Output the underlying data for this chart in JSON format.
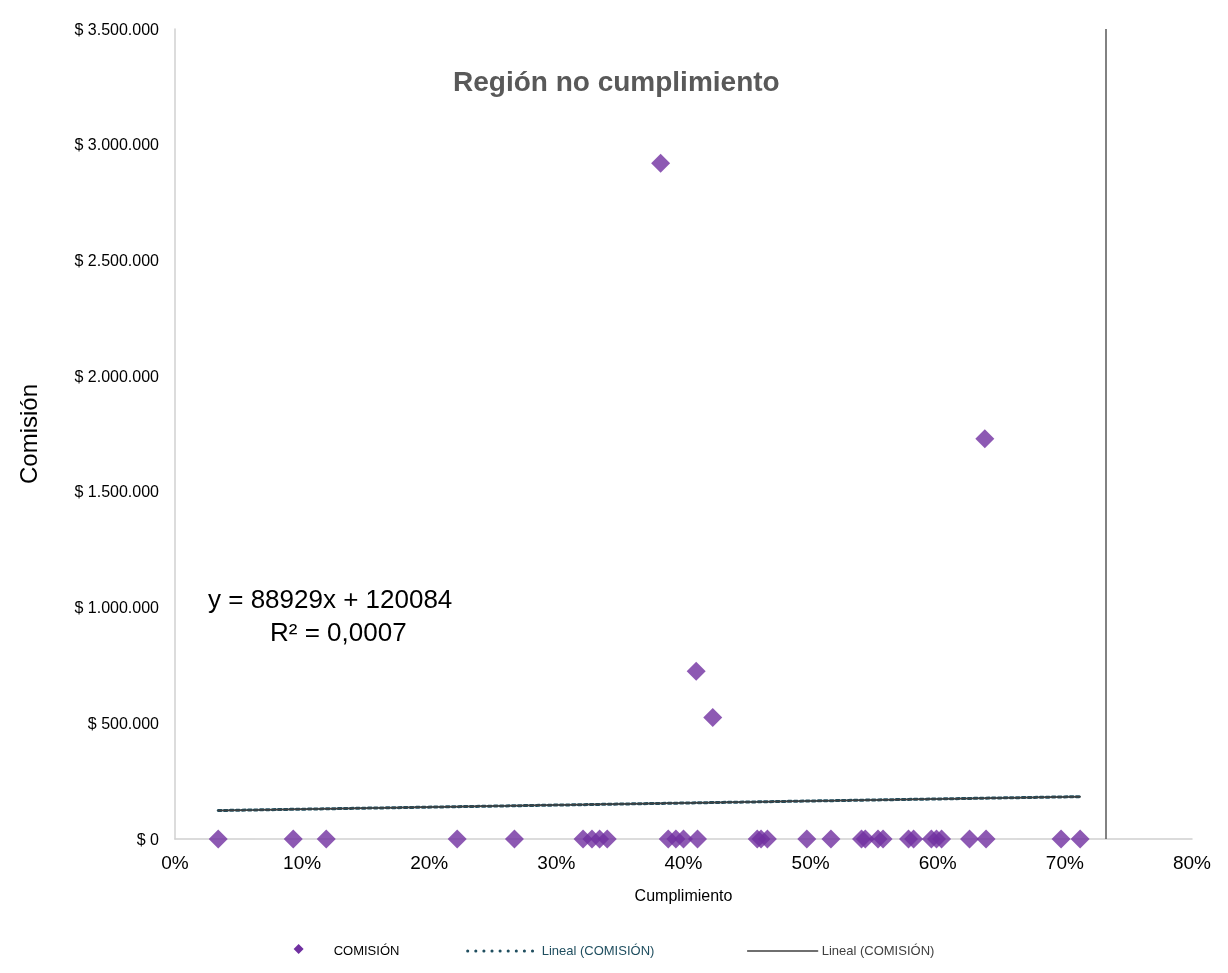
{
  "chart_data": {
    "type": "scatter",
    "title": "Región no cumplimiento",
    "xlabel": "Cumplimiento",
    "ylabel": "Comisión",
    "annotations": [
      "y = 88929x + 120084",
      "R² = 0,0007"
    ],
    "xlim": [
      0,
      80
    ],
    "xticks": [
      {
        "value": 0,
        "label": "0%"
      },
      {
        "value": 10,
        "label": "10%"
      },
      {
        "value": 20,
        "label": "20%"
      },
      {
        "value": 30,
        "label": "30%"
      },
      {
        "value": 40,
        "label": "40%"
      },
      {
        "value": 50,
        "label": "50%"
      },
      {
        "value": 60,
        "label": "60%"
      },
      {
        "value": 70,
        "label": "70%"
      },
      {
        "value": 80,
        "label": "80%"
      }
    ],
    "ylim": [
      0,
      3500000
    ],
    "yticks": [
      {
        "value": 0,
        "label": "$ 0"
      },
      {
        "value": 500000,
        "label": "$ 500.000"
      },
      {
        "value": 1000000,
        "label": "$ 1.000.000"
      },
      {
        "value": 1500000,
        "label": "$ 1.500.000"
      },
      {
        "value": 2000000,
        "label": "$ 2.000.000"
      },
      {
        "value": 2500000,
        "label": "$ 2.500.000"
      },
      {
        "value": 3000000,
        "label": "$ 3.000.000"
      },
      {
        "value": 3500000,
        "label": "$ 3.500.000"
      }
    ],
    "grid": false,
    "legend": "bottom",
    "marker": "diamond",
    "ref_lines": [
      {
        "axis": "x",
        "value": 73.2,
        "label": null,
        "color": "#595959",
        "line_style": "solid"
      }
    ],
    "series": [
      {
        "name": "COMISIÓN",
        "color": "#7030a0",
        "x": [
          3.4,
          9.3,
          11.9,
          22.2,
          26.7,
          32.1,
          32.8,
          33.4,
          34.0,
          38.2,
          38.8,
          39.4,
          40.0,
          41.0,
          41.1,
          42.3,
          45.8,
          46.1,
          46.6,
          49.7,
          51.6,
          54.0,
          54.3,
          55.3,
          55.7,
          57.7,
          58.1,
          59.5,
          59.9,
          60.3,
          62.5,
          63.7,
          63.8,
          69.7,
          71.2
        ],
        "values": [
          0,
          0,
          0,
          0,
          0,
          0,
          0,
          0,
          0,
          2920000,
          0,
          0,
          0,
          725000,
          0,
          525000,
          0,
          0,
          0,
          0,
          0,
          0,
          0,
          0,
          0,
          0,
          0,
          0,
          0,
          0,
          0,
          1730000,
          0,
          0,
          0
        ]
      },
      {
        "name": "Lineal (COMISIÓN)",
        "type": "line",
        "color": "#1f4e5f",
        "line_style": "dotted",
        "marker": "none",
        "x": [
          3.4,
          71.2
        ],
        "values": [
          123000,
          183000
        ]
      },
      {
        "name": "Lineal (COMISIÓN)",
        "type": "line",
        "color": "#404040",
        "line_style": "solid",
        "marker": "none",
        "x": [
          3.4,
          71.2
        ],
        "values": [
          123000,
          183000
        ]
      }
    ]
  }
}
